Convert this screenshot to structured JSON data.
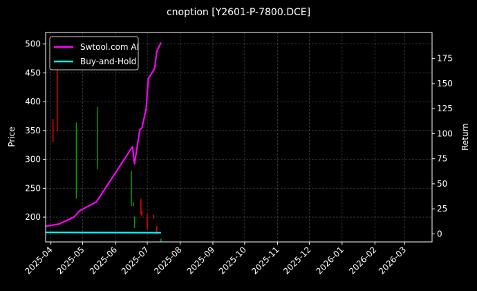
{
  "chart_data": {
    "type": "line",
    "title": "cnoption [Y2601-P-7800.DCE]",
    "ylabel": "Price",
    "y2label": "Return",
    "ylim": [
      157,
      520
    ],
    "y2lim": [
      -8,
      201
    ],
    "xlim": [
      "2025-03-27",
      "2026-03-27"
    ],
    "grid": true,
    "legend": "top-left",
    "x_ticks": [
      "2025-04",
      "2025-05",
      "2025-06",
      "2025-07",
      "2025-08",
      "2025-09",
      "2025-10",
      "2025-11",
      "2025-12",
      "2026-01",
      "2026-02",
      "2026-03"
    ],
    "y_ticks": [
      200,
      250,
      300,
      350,
      400,
      450,
      500
    ],
    "y2_ticks": [
      0,
      25,
      50,
      75,
      100,
      125,
      150,
      175
    ],
    "candles": [
      {
        "date": "2025-04-03",
        "high": 370,
        "low": 330,
        "dir": "down"
      },
      {
        "date": "2025-04-07",
        "high": 463,
        "low": 349,
        "dir": "down"
      },
      {
        "date": "2025-04-25",
        "high": 364,
        "low": 232,
        "dir": "up"
      },
      {
        "date": "2025-05-15",
        "high": 391,
        "low": 283,
        "dir": "up"
      },
      {
        "date": "2025-06-16",
        "high": 280,
        "low": 219,
        "dir": "up"
      },
      {
        "date": "2025-06-18",
        "high": 226,
        "low": 219,
        "dir": "up"
      },
      {
        "date": "2025-06-19",
        "high": 201,
        "low": 181,
        "dir": "up"
      },
      {
        "date": "2025-06-25",
        "high": 232,
        "low": 205,
        "dir": "down"
      },
      {
        "date": "2025-06-26",
        "high": 211,
        "low": 201,
        "dir": "down"
      },
      {
        "date": "2025-07-01",
        "high": 205,
        "low": 178,
        "dir": "down"
      },
      {
        "date": "2025-07-07",
        "high": 204,
        "low": 197,
        "dir": "down"
      },
      {
        "date": "2025-07-10",
        "high": 185,
        "low": 170,
        "dir": "down"
      },
      {
        "date": "2025-07-14",
        "high": 163,
        "low": 157,
        "dir": "up"
      }
    ],
    "series": [
      {
        "name": "Swtool.com AI",
        "color": "#ff00ff",
        "axis": "right",
        "x": [
          "2025-03-27",
          "2025-04-09",
          "2025-04-23",
          "2025-04-28",
          "2025-05-14",
          "2025-06-17",
          "2025-06-19",
          "2025-06-24",
          "2025-06-26",
          "2025-06-30",
          "2025-07-02",
          "2025-07-08",
          "2025-07-10",
          "2025-07-14"
        ],
        "values": [
          7.6,
          10,
          17,
          23,
          32,
          87,
          70,
          104,
          106,
          125,
          155,
          165,
          182,
          191
        ]
      },
      {
        "name": "Buy-and-Hold",
        "color": "#00ffff",
        "axis": "right",
        "x": [
          "2025-03-27",
          "2025-07-14"
        ],
        "values": [
          1.5,
          1.2
        ]
      }
    ],
    "colors": {
      "up": "#00aa00",
      "down": "#ff0000"
    }
  }
}
